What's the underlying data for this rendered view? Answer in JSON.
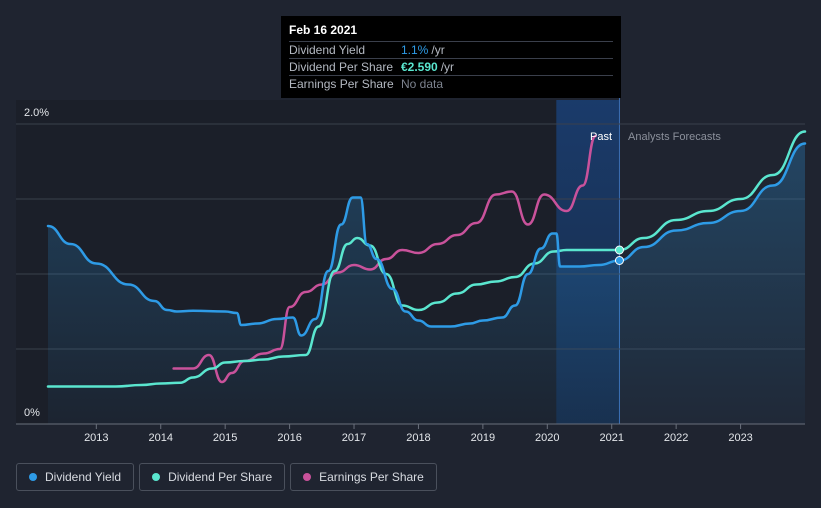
{
  "tooltip": {
    "date": "Feb 16 2021",
    "rows": [
      {
        "label": "Dividend Yield",
        "value": "1.1%",
        "unit": "/yr"
      },
      {
        "label": "Dividend Per Share",
        "value": "€2.590",
        "unit": "/yr"
      },
      {
        "label": "Earnings Per Share",
        "value": "No data"
      }
    ]
  },
  "legend": [
    {
      "label": "Dividend Yield",
      "color": "#2e9be6"
    },
    {
      "label": "Dividend Per Share",
      "color": "#5ae6cf"
    },
    {
      "label": "Earnings Per Share",
      "color": "#c9529b"
    }
  ],
  "chart_data": {
    "type": "line",
    "ylim": [
      0,
      2.0
    ],
    "y_ticks": [
      "2.0%",
      "0%"
    ],
    "x_range": [
      2012.25,
      2024.0
    ],
    "x_ticks": [
      "2013",
      "2014",
      "2015",
      "2016",
      "2017",
      "2018",
      "2019",
      "2020",
      "2021",
      "2022",
      "2023"
    ],
    "past_label": "Past",
    "forecast_label": "Analysts Forecasts",
    "current_date": 2021.12,
    "highlight_start": 2020.14,
    "series": [
      {
        "name": "Dividend Yield",
        "color": "#2e9be6",
        "points": [
          [
            2012.25,
            1.32
          ],
          [
            2012.6,
            1.2
          ],
          [
            2013.0,
            1.07
          ],
          [
            2013.5,
            0.93
          ],
          [
            2013.9,
            0.82
          ],
          [
            2014.1,
            0.76
          ],
          [
            2014.25,
            0.75
          ],
          [
            2014.5,
            0.755
          ],
          [
            2015.0,
            0.75
          ],
          [
            2015.18,
            0.74
          ],
          [
            2015.25,
            0.66
          ],
          [
            2015.5,
            0.67
          ],
          [
            2015.8,
            0.7
          ],
          [
            2016.05,
            0.71
          ],
          [
            2016.18,
            0.59
          ],
          [
            2016.4,
            0.7
          ],
          [
            2016.6,
            1.02
          ],
          [
            2016.8,
            1.33
          ],
          [
            2016.98,
            1.51
          ],
          [
            2017.1,
            1.51
          ],
          [
            2017.2,
            1.2
          ],
          [
            2017.35,
            1.1
          ],
          [
            2017.6,
            0.9
          ],
          [
            2017.8,
            0.75
          ],
          [
            2018.0,
            0.69
          ],
          [
            2018.2,
            0.65
          ],
          [
            2018.5,
            0.65
          ],
          [
            2018.8,
            0.67
          ],
          [
            2019.0,
            0.69
          ],
          [
            2019.3,
            0.71
          ],
          [
            2019.5,
            0.79
          ],
          [
            2019.7,
            1.0
          ],
          [
            2019.9,
            1.17
          ],
          [
            2020.08,
            1.27
          ],
          [
            2020.14,
            1.27
          ],
          [
            2020.2,
            1.05
          ],
          [
            2020.5,
            1.05
          ],
          [
            2020.8,
            1.06
          ],
          [
            2021.12,
            1.09
          ],
          [
            2021.5,
            1.18
          ],
          [
            2022.0,
            1.29
          ],
          [
            2022.5,
            1.34
          ],
          [
            2023.0,
            1.42
          ],
          [
            2023.5,
            1.59
          ],
          [
            2024.0,
            1.87
          ]
        ]
      },
      {
        "name": "Dividend Per Share",
        "color": "#5ae6cf",
        "points": [
          [
            2012.25,
            0.25
          ],
          [
            2012.8,
            0.25
          ],
          [
            2013.3,
            0.25
          ],
          [
            2013.7,
            0.26
          ],
          [
            2014.0,
            0.27
          ],
          [
            2014.3,
            0.275
          ],
          [
            2014.5,
            0.31
          ],
          [
            2014.8,
            0.37
          ],
          [
            2015.0,
            0.41
          ],
          [
            2015.3,
            0.42
          ],
          [
            2015.6,
            0.43
          ],
          [
            2015.9,
            0.45
          ],
          [
            2016.25,
            0.46
          ],
          [
            2016.45,
            0.65
          ],
          [
            2016.7,
            1.02
          ],
          [
            2016.9,
            1.2
          ],
          [
            2017.05,
            1.24
          ],
          [
            2017.25,
            1.19
          ],
          [
            2017.5,
            1.0
          ],
          [
            2017.75,
            0.79
          ],
          [
            2018.0,
            0.76
          ],
          [
            2018.3,
            0.81
          ],
          [
            2018.6,
            0.87
          ],
          [
            2018.9,
            0.93
          ],
          [
            2019.2,
            0.95
          ],
          [
            2019.5,
            0.98
          ],
          [
            2019.8,
            1.07
          ],
          [
            2020.1,
            1.15
          ],
          [
            2020.3,
            1.16
          ],
          [
            2020.6,
            1.16
          ],
          [
            2021.12,
            1.16
          ],
          [
            2021.5,
            1.24
          ],
          [
            2022.0,
            1.36
          ],
          [
            2022.5,
            1.42
          ],
          [
            2023.0,
            1.5
          ],
          [
            2023.5,
            1.66
          ],
          [
            2024.0,
            1.95
          ]
        ]
      },
      {
        "name": "Earnings Per Share",
        "color": "#c9529b",
        "points": [
          [
            2014.2,
            0.37
          ],
          [
            2014.5,
            0.37
          ],
          [
            2014.75,
            0.46
          ],
          [
            2014.95,
            0.28
          ],
          [
            2015.1,
            0.34
          ],
          [
            2015.3,
            0.42
          ],
          [
            2015.6,
            0.47
          ],
          [
            2015.85,
            0.5
          ],
          [
            2016.0,
            0.78
          ],
          [
            2016.25,
            0.88
          ],
          [
            2016.5,
            0.93
          ],
          [
            2016.75,
            1.01
          ],
          [
            2017.0,
            1.06
          ],
          [
            2017.25,
            1.03
          ],
          [
            2017.5,
            1.1
          ],
          [
            2017.75,
            1.16
          ],
          [
            2018.0,
            1.14
          ],
          [
            2018.3,
            1.2
          ],
          [
            2018.6,
            1.26
          ],
          [
            2018.9,
            1.34
          ],
          [
            2019.2,
            1.53
          ],
          [
            2019.45,
            1.55
          ],
          [
            2019.7,
            1.33
          ],
          [
            2019.95,
            1.53
          ],
          [
            2020.3,
            1.42
          ],
          [
            2020.55,
            1.59
          ],
          [
            2020.75,
            1.92
          ]
        ]
      }
    ]
  }
}
